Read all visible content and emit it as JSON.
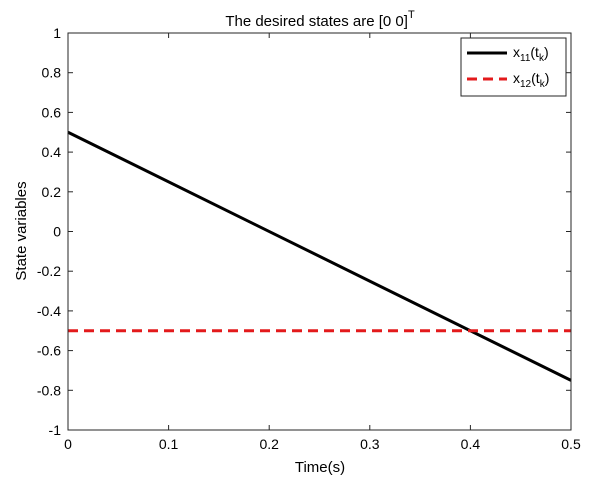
{
  "chart_data": {
    "type": "line",
    "title": {
      "text": "The desired states are [0 0]",
      "superscript": "T"
    },
    "xlabel": "Time(s)",
    "ylabel": "State variables",
    "xlim": [
      0,
      0.5
    ],
    "ylim": [
      -1,
      1
    ],
    "xticks": [
      0,
      0.1,
      0.2,
      0.3,
      0.4,
      0.5
    ],
    "xtick_labels": [
      "0",
      "0.1",
      "0.2",
      "0.3",
      "0.4",
      "0.5"
    ],
    "yticks": [
      1,
      0.8,
      0.6,
      0.4,
      0.2,
      0,
      -0.2,
      -0.4,
      -0.6,
      -0.8,
      -1
    ],
    "ytick_labels": [
      "1",
      "0.8",
      "0.6",
      "0.4",
      "0.2",
      "0",
      "-0.2",
      "-0.4",
      "-0.6",
      "-0.8",
      "-1"
    ],
    "grid": false,
    "legend_position": "top-right",
    "series": [
      {
        "name": "x11(tk)",
        "legend": {
          "base": "x",
          "sub": "11",
          "paren_open": "(t",
          "paren_sub": "k",
          "paren_close": ")"
        },
        "color": "#000000",
        "style": "solid",
        "x": [
          0,
          0.5
        ],
        "y": [
          0.5,
          -0.75
        ]
      },
      {
        "name": "x12(tk)",
        "legend": {
          "base": "x",
          "sub": "12",
          "paren_open": "(t",
          "paren_sub": "k",
          "paren_close": ")"
        },
        "color": "#e31a1c",
        "style": "dashed",
        "x": [
          0,
          0.5
        ],
        "y": [
          -0.5,
          -0.5
        ]
      }
    ]
  }
}
